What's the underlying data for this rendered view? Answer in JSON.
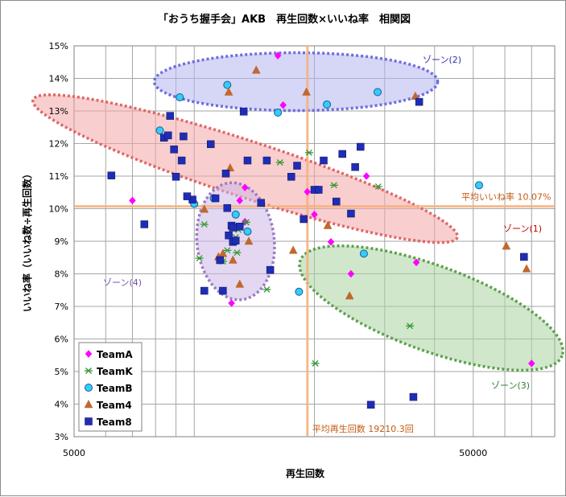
{
  "chart_data": {
    "type": "scatter",
    "title": "「おうち握手会」AKB　再生回数×いいね率　相関図",
    "xlabel": "再生回数",
    "ylabel": "いいね率（いいね数÷再生回数）",
    "x_scale": "log",
    "xlim": [
      5000,
      80000
    ],
    "ylim": [
      0.03,
      0.15
    ],
    "x_tick_labels": [
      "5000",
      "50000"
    ],
    "y_tick_labels": [
      "3%",
      "4%",
      "5%",
      "6%",
      "7%",
      "8%",
      "9%",
      "10%",
      "11%",
      "12%",
      "13%",
      "14%",
      "15%"
    ],
    "grid": true,
    "legend_position": "bottom-left",
    "reference_lines": {
      "avg_views": {
        "value": 19210.3,
        "label": "平均再生回数 19210.3回",
        "color": "#f4b183"
      },
      "avg_like_rate": {
        "value": 0.1007,
        "label": "平均いいね率 10.07%",
        "color": "#f4b183"
      }
    },
    "zones": [
      {
        "label": "ゾーン(1)",
        "fill": "#f4a6a6",
        "stroke": "#e06666",
        "text_color": "#c00000"
      },
      {
        "label": "ゾーン(2)",
        "fill": "#b4b4ee",
        "stroke": "#6d6de0",
        "text_color": "#3333aa"
      },
      {
        "label": "ゾーン(3)",
        "fill": "#a9d3a0",
        "stroke": "#5ea04e",
        "text_color": "#2e7d32"
      },
      {
        "label": "ゾーン(4)",
        "fill": "#cdb6e6",
        "stroke": "#9a7cc8",
        "text_color": "#7a4fb0"
      }
    ],
    "series": [
      {
        "name": "TeamA",
        "marker": "diamond",
        "color": "#ff00ff",
        "x": [
          7000,
          13400,
          13000,
          13400,
          12400,
          16200,
          16700,
          20000,
          22000,
          24700,
          27000,
          36000,
          70000,
          19200
        ],
        "y": [
          0.1025,
          0.1065,
          0.1025,
          0.096,
          0.071,
          0.147,
          0.1318,
          0.0982,
          0.0898,
          0.08,
          0.11,
          0.0835,
          0.0525,
          0.1052
        ]
      },
      {
        "name": "TeamK",
        "marker": "asterisk",
        "color": "#339933",
        "x": [
          10300,
          10600,
          11800,
          12100,
          12700,
          12800,
          12900,
          13500,
          15200,
          16400,
          19400,
          20100,
          22400,
          28900,
          34700
        ],
        "y": [
          0.0848,
          0.0952,
          0.0838,
          0.0872,
          0.0912,
          0.0865,
          0.0935,
          0.0958,
          0.0752,
          0.1142,
          0.1172,
          0.0525,
          0.1072,
          0.1068,
          0.064
        ]
      },
      {
        "name": "TeamB",
        "marker": "circle",
        "color": "#33ccff",
        "x": [
          8200,
          9200,
          10000,
          11200,
          12100,
          12700,
          16200,
          18300,
          20400,
          21500,
          28800,
          26600,
          51700,
          13600
        ],
        "y": [
          0.124,
          0.1342,
          0.1015,
          0.1032,
          0.138,
          0.0982,
          0.1295,
          0.0745,
          0.1058,
          0.132,
          0.1358,
          0.0862,
          0.1072,
          0.093
        ]
      },
      {
        "name": "Team4",
        "marker": "triangle",
        "color": "#c0692f",
        "x": [
          10600,
          11500,
          11800,
          12200,
          12300,
          12500,
          13000,
          14300,
          17700,
          19100,
          21600,
          24500,
          35800,
          60500,
          68000,
          13700
        ],
        "y": [
          0.0998,
          0.0852,
          0.0862,
          0.1358,
          0.1125,
          0.0842,
          0.0768,
          0.1425,
          0.0872,
          0.1358,
          0.0948,
          0.0732,
          0.1345,
          0.0885,
          0.0815,
          0.09
        ]
      },
      {
        "name": "Team8",
        "marker": "square",
        "color": "#1f2db5",
        "x": [
          6200,
          7500,
          8400,
          8600,
          8700,
          8900,
          9000,
          9300,
          9400,
          9900,
          10600,
          11000,
          11300,
          11600,
          11800,
          12000,
          12100,
          12200,
          12400,
          12500,
          12700,
          13000,
          13600,
          14700,
          15200,
          15500,
          17500,
          18100,
          18800,
          20000,
          20500,
          21100,
          22700,
          23500,
          24700,
          25300,
          26100,
          27700,
          35400,
          36600,
          67000,
          9600,
          12500,
          13300
        ],
        "y": [
          0.1102,
          0.0952,
          0.1218,
          0.1225,
          0.1285,
          0.1182,
          0.1098,
          0.1148,
          0.1222,
          0.1028,
          0.0748,
          0.1198,
          0.1032,
          0.0842,
          0.0748,
          0.1108,
          0.1002,
          0.0918,
          0.0948,
          0.0898,
          0.0902,
          0.0945,
          0.1148,
          0.1018,
          0.1148,
          0.0812,
          0.1098,
          0.1132,
          0.0968,
          0.1058,
          0.1058,
          0.1148,
          0.1022,
          0.1168,
          0.0985,
          0.1128,
          0.119,
          0.0398,
          0.0422,
          0.1328,
          0.0852,
          0.1038,
          0.0942,
          0.1298
        ]
      }
    ]
  }
}
